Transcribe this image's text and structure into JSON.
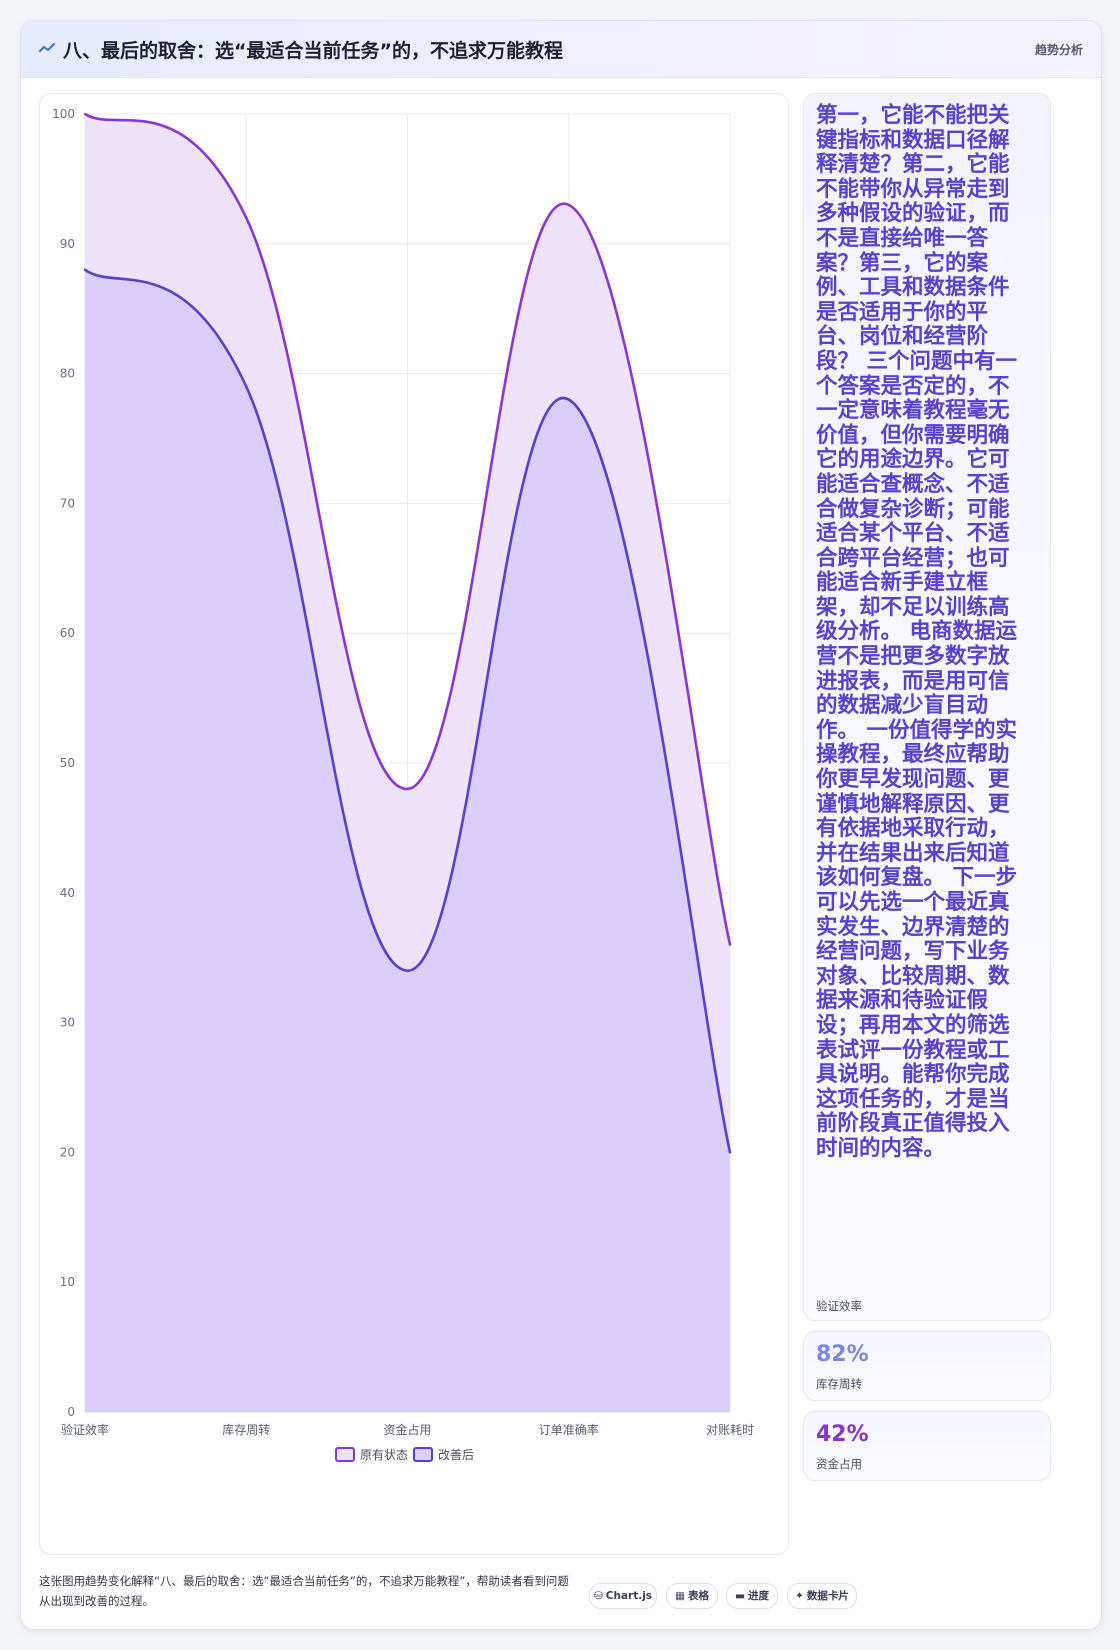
{
  "header": {
    "icon": "chart-line-icon",
    "title": "八、最后的取舍：选“最适合当前任务”的，不追求万能教程",
    "tag": "趋势分析"
  },
  "chart_data": {
    "type": "area",
    "categories": [
      "验证效率",
      "库存周转",
      "资金占用",
      "订单准确率",
      "对账耗时"
    ],
    "series": [
      {
        "name": "原有状态",
        "values": [
          100,
          92,
          48,
          93,
          36
        ],
        "color": "#8a35d6",
        "fill": "#efe3fb"
      },
      {
        "name": "改善后",
        "values": [
          88,
          79,
          34,
          78,
          20
        ],
        "color": "#5540d2",
        "fill": "#dccefa"
      }
    ],
    "ylim": [
      0,
      100
    ],
    "yticks": [
      0,
      10,
      20,
      30,
      40,
      50,
      60,
      70,
      80,
      90,
      100
    ],
    "grid": true,
    "legend": "bottom"
  },
  "side": {
    "text_card": {
      "value": "第一，它能不能把关键指标和数据口径解释清楚？第二，它能不能带你从异常走到多种假设的验证，而不是直接给唯一答案？第三，它的案例、工具和数据条件是否适用于你的平台、岗位和经营阶段？ 三个问题中有一个答案是否定的，不一定意味着教程毫无价值，但你需要明确它的用途边界。它可能适合查概念、不适合做复杂诊断；可能适合某个平台、不适合跨平台经营；也可能适合新手建立框架，却不足以训练高级分析。 电商数据运营不是把更多数字放进报表，而是用可信的数据减少盲目动作。 一份值得学的实操教程，最终应帮助你更早发现问题、更谨慎地解释原因、更有依据地采取行动，并在结果出来后知道该如何复盘。 下一步可以先选一个最近真实发生、边界清楚的经营问题，写下业务对象、比较周期、数据来源和待验证假设；再用本文的筛选表试评一份教程或工具说明。能帮你完成这项任务的，才是当前阶段真正值得投入时间的内容。",
      "label": "验证效率"
    },
    "stats": [
      {
        "value": "82%",
        "label": "库存周转",
        "color": "#7a86e0"
      },
      {
        "value": "42%",
        "label": "资金占用",
        "color": "#8a2fd0"
      }
    ]
  },
  "footer": {
    "caption": "这张图用趋势变化解释“八、最后的取舍：选“最适合当前任务”的，不追求万能教程”，帮助读者看到问题从出现到改善的过程。",
    "chips": [
      {
        "icon": "⛁",
        "label": "Chart.js"
      },
      {
        "icon": "▦",
        "label": "表格"
      },
      {
        "icon": "▬",
        "label": "进度"
      },
      {
        "icon": "✦",
        "label": "数据卡片"
      }
    ]
  }
}
